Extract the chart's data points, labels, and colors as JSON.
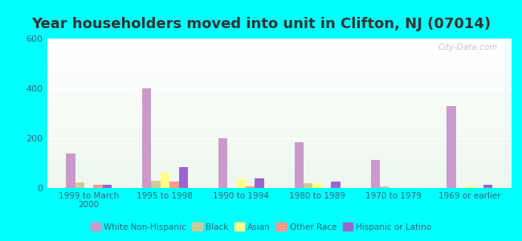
{
  "title": "Year householders moved into unit in Clifton, NJ (07014)",
  "categories": [
    "1999 to March\n2000",
    "1995 to 1998",
    "1990 to 1994",
    "1980 to 1989",
    "1970 to 1979",
    "1969 or earlier"
  ],
  "series": {
    "White Non-Hispanic": [
      140,
      400,
      200,
      183,
      113,
      330
    ],
    "Black": [
      22,
      30,
      0,
      20,
      5,
      0
    ],
    "Asian": [
      0,
      62,
      37,
      20,
      0,
      10
    ],
    "Other Race": [
      13,
      27,
      5,
      0,
      0,
      0
    ],
    "Hispanic or Latino": [
      13,
      83,
      40,
      27,
      0,
      13
    ]
  },
  "colors": {
    "White Non-Hispanic": "#cc99cc",
    "Black": "#cccc99",
    "Asian": "#ffff88",
    "Other Race": "#ff9988",
    "Hispanic or Latino": "#9966cc"
  },
  "ylim": [
    0,
    600
  ],
  "yticks": [
    0,
    200,
    400,
    600
  ],
  "outer_background": "#00ffff",
  "watermark": "City-Data.com",
  "title_color": "#333333",
  "title_fontsize": 13,
  "tick_color": "#336677",
  "bar_width": 0.12
}
